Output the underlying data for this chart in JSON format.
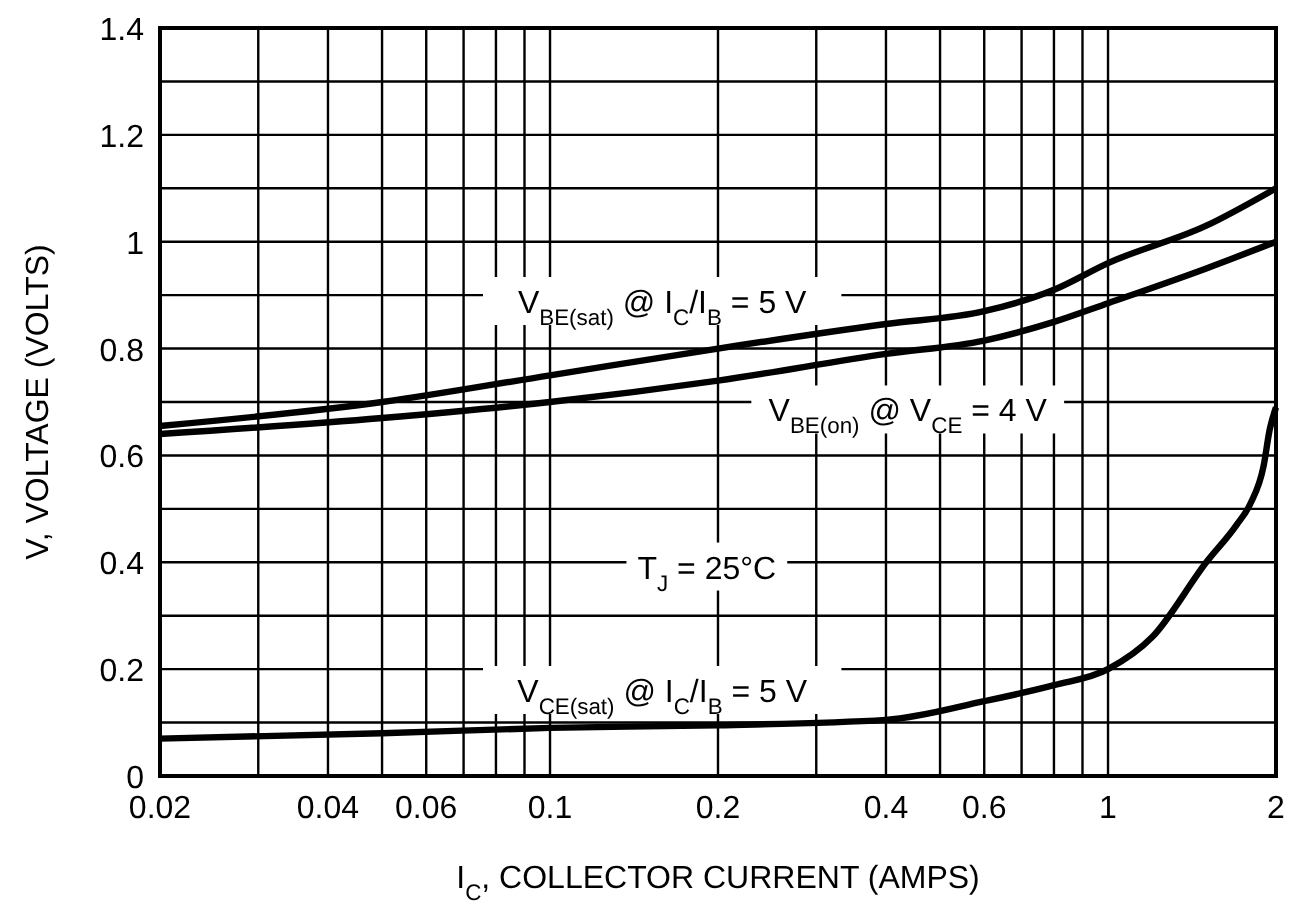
{
  "chart_data": {
    "type": "line",
    "xlabel": "I$_{C}$, COLLECTOR CURRENT (AMPS)",
    "ylabel": "V, VOLTAGE (VOLTS)",
    "log": "x",
    "grid": true,
    "marker": "none",
    "line_style": "solid",
    "xlim": [
      0.02,
      2
    ],
    "ylim": [
      0,
      1.4
    ],
    "xticks": [
      0.02,
      {
        "value": 0.03,
        "label": null
      },
      0.04,
      {
        "value": 0.05,
        "label": null
      },
      0.06,
      {
        "value": 0.07,
        "label": null
      },
      {
        "value": 0.08,
        "label": null
      },
      {
        "value": 0.09,
        "label": null
      },
      0.1,
      0.2,
      {
        "value": 0.3,
        "label": null
      },
      0.4,
      {
        "value": 0.5,
        "label": null
      },
      0.6,
      {
        "value": 0.7,
        "label": null
      },
      {
        "value": 0.8,
        "label": null
      },
      {
        "value": 0.9,
        "label": null
      },
      1,
      2
    ],
    "yticks": [
      0,
      {
        "value": 0.1,
        "label": null
      },
      0.2,
      {
        "value": 0.3,
        "label": null
      },
      0.4,
      {
        "value": 0.5,
        "label": null
      },
      0.6,
      {
        "value": 0.7,
        "label": null
      },
      0.8,
      {
        "value": 0.9,
        "label": null
      },
      1,
      {
        "value": 1.1,
        "label": null
      },
      1.2,
      {
        "value": 1.3,
        "label": null
      },
      1.4
    ],
    "series": [
      {
        "color": "#000000",
        "x": [
          0.02,
          0.05,
          0.1,
          0.2,
          0.4,
          0.6,
          0.8,
          1,
          1.5,
          2
        ],
        "values": [
          0.655,
          0.7,
          0.75,
          0.8,
          0.846,
          0.87,
          0.91,
          0.96,
          1.03,
          1.1
        ]
      },
      {
        "color": "#000000",
        "x": [
          0.02,
          0.05,
          0.1,
          0.2,
          0.4,
          0.6,
          0.8,
          1,
          1.5,
          2
        ],
        "values": [
          0.64,
          0.67,
          0.7,
          0.74,
          0.79,
          0.815,
          0.85,
          0.885,
          0.95,
          1.0
        ]
      },
      {
        "color": "#000000",
        "x": [
          0.02,
          0.05,
          0.1,
          0.2,
          0.4,
          0.6,
          0.8,
          1,
          1.2,
          1.5,
          1.7,
          1.8,
          1.9,
          1.95,
          2
        ],
        "values": [
          0.07,
          0.08,
          0.09,
          0.095,
          0.105,
          0.14,
          0.17,
          0.2,
          0.26,
          0.4,
          0.47,
          0.51,
          0.58,
          0.65,
          0.69
        ]
      }
    ],
    "annotations": [
      "V$_{BE(sat)}$ @ I$_{C}$/I$_{B}$ = 5 V",
      "V$_{BE(on)}$ @ V$_{CE}$ = 4 V",
      "T$_{J}$ = 25°C",
      "V$_{CE(sat)}$ @ I$_{C}$/I$_{B}$ = 5 V"
    ]
  }
}
